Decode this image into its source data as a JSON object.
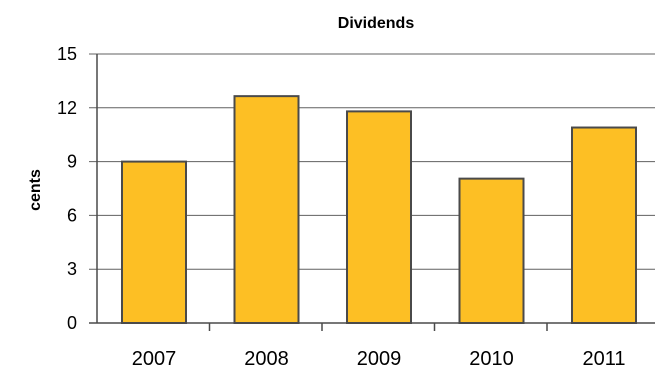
{
  "colors": {
    "bar_fill": "#FDBF24",
    "bar_stroke": "#4A4A4A",
    "gridline": "#606060",
    "axis": "#4A4A4A",
    "text": "#000000",
    "background": "#FFFFFF"
  },
  "chart_data": {
    "type": "bar",
    "title": "Dividends",
    "xlabel": "",
    "ylabel": "cents",
    "categories": [
      "2007",
      "2008",
      "2009",
      "2010",
      "2011"
    ],
    "values": [
      9.0,
      12.65,
      11.8,
      8.05,
      10.9
    ],
    "ylim": [
      0,
      15
    ],
    "yticks": [
      0,
      3,
      6,
      9,
      12,
      15
    ],
    "grid": true,
    "legend": "none"
  }
}
